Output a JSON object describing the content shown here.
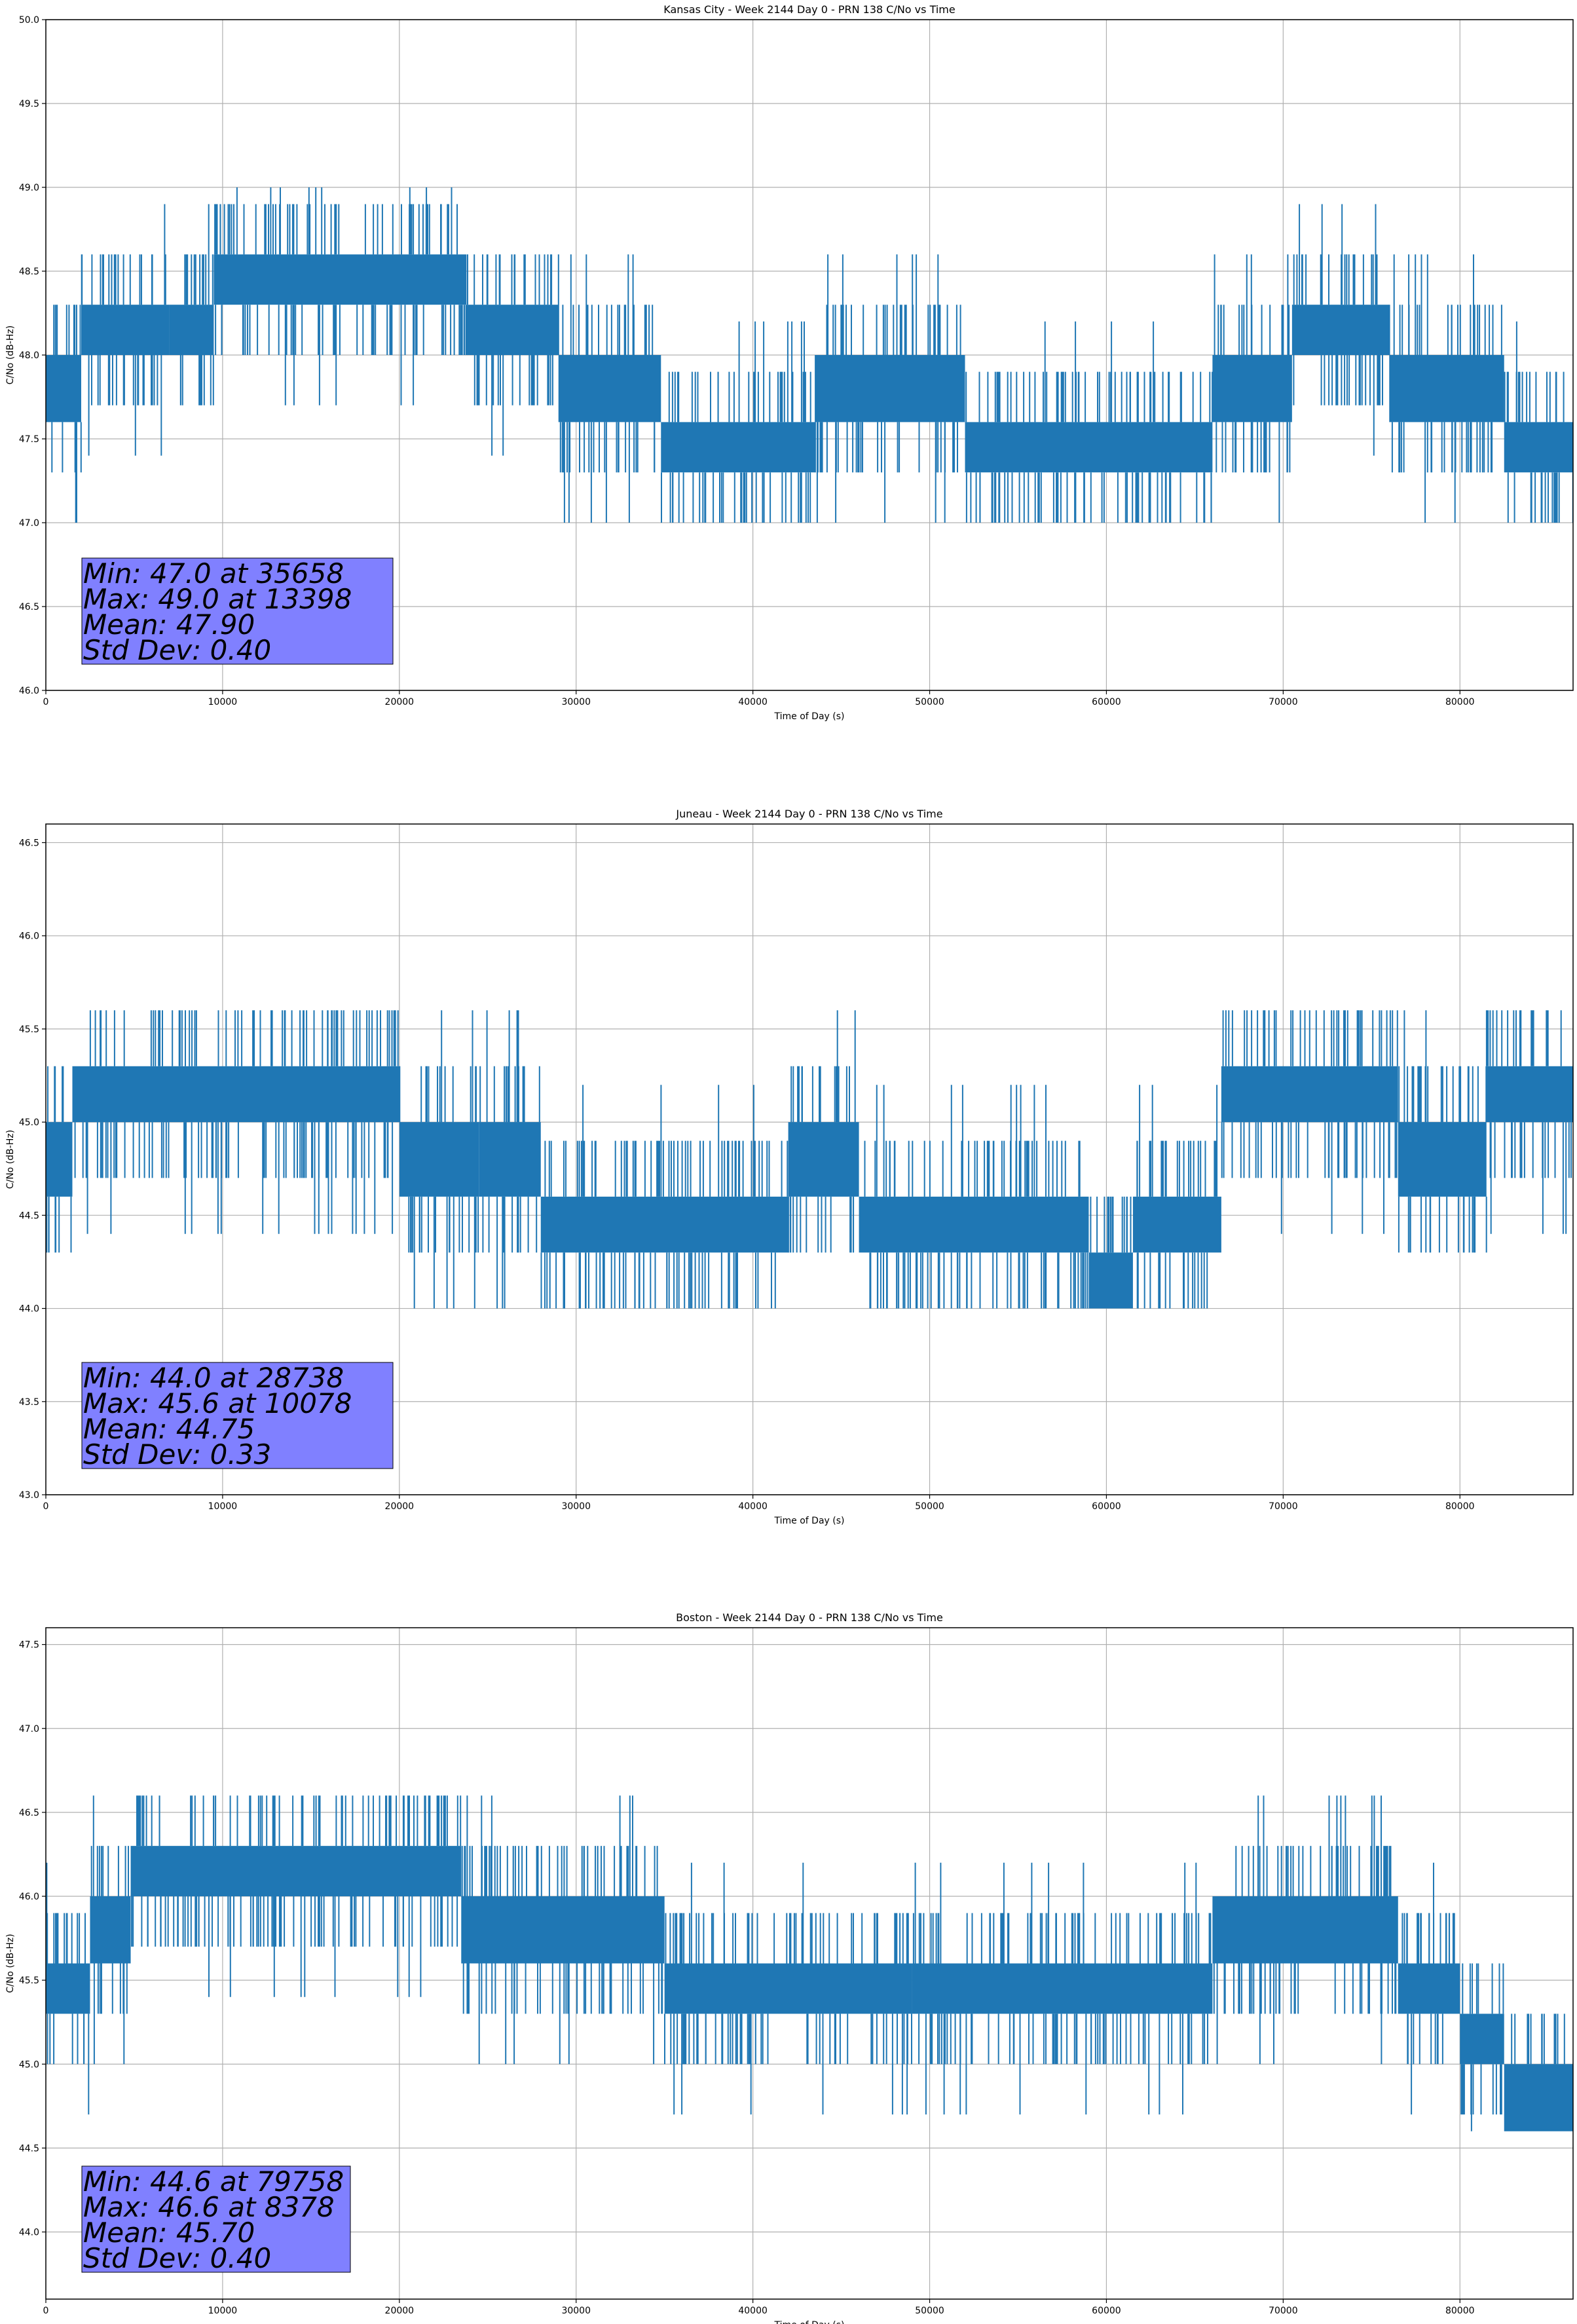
{
  "chart_data": [
    {
      "type": "line",
      "title": "Kansas City - Week 2144 Day 0 - PRN 138 C/No vs Time",
      "xlabel": "Time of Day (s)",
      "ylabel": "C/No (dB-Hz)",
      "xlim": [
        0,
        86400
      ],
      "ylim": [
        46.0,
        50.0
      ],
      "xticks": [
        "0",
        "10000",
        "20000",
        "30000",
        "40000",
        "50000",
        "60000",
        "70000",
        "80000"
      ],
      "yticks": [
        "46.0",
        "46.5",
        "47.0",
        "47.5",
        "48.0",
        "48.5",
        "49.0",
        "49.5",
        "50.0"
      ],
      "grid": true,
      "quantization": 0.3,
      "spike_max": 49.0,
      "spike_min": 47.0,
      "segments": [
        {
          "x0": 0,
          "x1": 2000,
          "lo": 47.6,
          "hi": 48.0
        },
        {
          "x0": 2000,
          "x1": 7000,
          "lo": 48.0,
          "hi": 48.3
        },
        {
          "x0": 7000,
          "x1": 9500,
          "lo": 48.0,
          "hi": 48.3
        },
        {
          "x0": 9500,
          "x1": 23800,
          "lo": 48.3,
          "hi": 48.6
        },
        {
          "x0": 23800,
          "x1": 29000,
          "lo": 48.0,
          "hi": 48.3
        },
        {
          "x0": 29000,
          "x1": 34800,
          "lo": 47.6,
          "hi": 48.0
        },
        {
          "x0": 34800,
          "x1": 43500,
          "lo": 47.3,
          "hi": 47.6
        },
        {
          "x0": 43500,
          "x1": 52000,
          "lo": 47.6,
          "hi": 48.0
        },
        {
          "x0": 52000,
          "x1": 66000,
          "lo": 47.3,
          "hi": 47.6
        },
        {
          "x0": 66000,
          "x1": 70500,
          "lo": 47.6,
          "hi": 48.0
        },
        {
          "x0": 70500,
          "x1": 76000,
          "lo": 48.0,
          "hi": 48.3
        },
        {
          "x0": 76000,
          "x1": 82500,
          "lo": 47.6,
          "hi": 48.0
        },
        {
          "x0": 82500,
          "x1": 86400,
          "lo": 47.3,
          "hi": 47.6
        }
      ],
      "stats": [
        "Min: 47.0 at 35658",
        "Max: 49.0 at 13398",
        "Mean: 47.90",
        "Std Dev: 0.40"
      ],
      "stats_box_color": "#8080ff"
    },
    {
      "type": "line",
      "title": "Juneau - Week 2144 Day 0 - PRN 138 C/No vs Time",
      "xlabel": "Time of Day (s)",
      "ylabel": "C/No (dB-Hz)",
      "xlim": [
        0,
        86400
      ],
      "ylim": [
        43.0,
        46.6
      ],
      "xticks": [
        "0",
        "10000",
        "20000",
        "30000",
        "40000",
        "50000",
        "60000",
        "70000",
        "80000"
      ],
      "yticks": [
        "43.0",
        "43.5",
        "44.0",
        "44.5",
        "45.0",
        "45.5",
        "46.0",
        "46.5"
      ],
      "grid": true,
      "quantization": 0.3,
      "spike_max": 45.6,
      "spike_min": 44.0,
      "segments": [
        {
          "x0": 0,
          "x1": 1500,
          "lo": 44.6,
          "hi": 45.0
        },
        {
          "x0": 1500,
          "x1": 20000,
          "lo": 45.0,
          "hi": 45.3
        },
        {
          "x0": 20000,
          "x1": 24500,
          "lo": 44.6,
          "hi": 45.0
        },
        {
          "x0": 24500,
          "x1": 28000,
          "lo": 44.6,
          "hi": 45.0
        },
        {
          "x0": 28000,
          "x1": 42000,
          "lo": 44.3,
          "hi": 44.6
        },
        {
          "x0": 42000,
          "x1": 46000,
          "lo": 44.6,
          "hi": 45.0
        },
        {
          "x0": 46000,
          "x1": 59000,
          "lo": 44.3,
          "hi": 44.6
        },
        {
          "x0": 59000,
          "x1": 61500,
          "lo": 44.0,
          "hi": 44.3
        },
        {
          "x0": 61500,
          "x1": 66500,
          "lo": 44.3,
          "hi": 44.6
        },
        {
          "x0": 66500,
          "x1": 76500,
          "lo": 45.0,
          "hi": 45.3
        },
        {
          "x0": 76500,
          "x1": 81500,
          "lo": 44.6,
          "hi": 45.0
        },
        {
          "x0": 81500,
          "x1": 86400,
          "lo": 45.0,
          "hi": 45.3
        }
      ],
      "stats": [
        "Min: 44.0 at 28738",
        "Max: 45.6 at 10078",
        "Mean: 44.75",
        "Std Dev: 0.33"
      ],
      "stats_box_color": "#8080ff"
    },
    {
      "type": "line",
      "title": "Boston - Week 2144 Day 0 - PRN 138 C/No vs Time",
      "xlabel": "Time of Day (s)",
      "ylabel": "C/No (dB-Hz)",
      "xlim": [
        0,
        86400
      ],
      "ylim": [
        43.6,
        47.6
      ],
      "xticks": [
        "0",
        "10000",
        "20000",
        "30000",
        "40000",
        "50000",
        "60000",
        "70000",
        "80000"
      ],
      "yticks": [
        "44.0",
        "44.5",
        "45.0",
        "45.5",
        "46.0",
        "46.5",
        "47.0",
        "47.5"
      ],
      "grid": true,
      "quantization": 0.3,
      "spike_max": 46.6,
      "spike_min": 44.6,
      "segments": [
        {
          "x0": 0,
          "x1": 2500,
          "lo": 45.3,
          "hi": 45.6
        },
        {
          "x0": 2500,
          "x1": 4800,
          "lo": 45.6,
          "hi": 46.0
        },
        {
          "x0": 4800,
          "x1": 23500,
          "lo": 46.0,
          "hi": 46.3
        },
        {
          "x0": 23500,
          "x1": 35000,
          "lo": 45.6,
          "hi": 46.0
        },
        {
          "x0": 35000,
          "x1": 49000,
          "lo": 45.3,
          "hi": 45.6
        },
        {
          "x0": 49000,
          "x1": 66000,
          "lo": 45.3,
          "hi": 45.6
        },
        {
          "x0": 66000,
          "x1": 76500,
          "lo": 45.6,
          "hi": 46.0
        },
        {
          "x0": 76500,
          "x1": 80000,
          "lo": 45.3,
          "hi": 45.6
        },
        {
          "x0": 80000,
          "x1": 82500,
          "lo": 45.0,
          "hi": 45.3
        },
        {
          "x0": 82500,
          "x1": 86400,
          "lo": 44.6,
          "hi": 45.0
        }
      ],
      "stats": [
        "Min: 44.6 at 79758",
        "Max: 46.6 at 8378",
        "Mean: 45.70",
        "Std Dev: 0.40"
      ],
      "stats_box_color": "#8080ff"
    }
  ],
  "line_color": "#1f77b4",
  "grid_color": "#b0b0b0"
}
